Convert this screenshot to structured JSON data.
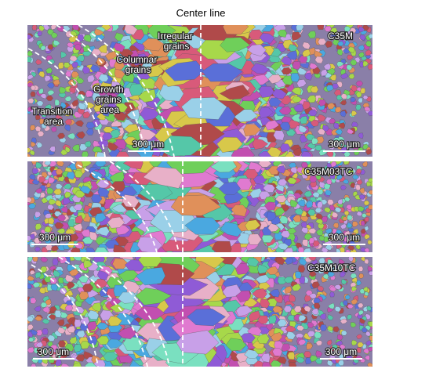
{
  "header": {
    "title": "Center line"
  },
  "panels": [
    {
      "label": "C35M",
      "scale_bars": [
        "300 μm",
        "300 μm"
      ],
      "annotations": [
        {
          "lines": [
            "Irregular",
            "grains"
          ]
        },
        {
          "lines": [
            "Columnar",
            "grains"
          ]
        },
        {
          "lines": [
            "Growth",
            "grains",
            "area"
          ]
        },
        {
          "lines": [
            "Transition",
            "area"
          ]
        }
      ]
    },
    {
      "label": "C35M03TC",
      "scale_bars": [
        "300 μm",
        "300 μm"
      ]
    },
    {
      "label": "C35M10TC",
      "scale_bars": [
        "300 μm",
        "300 μm"
      ]
    }
  ]
}
